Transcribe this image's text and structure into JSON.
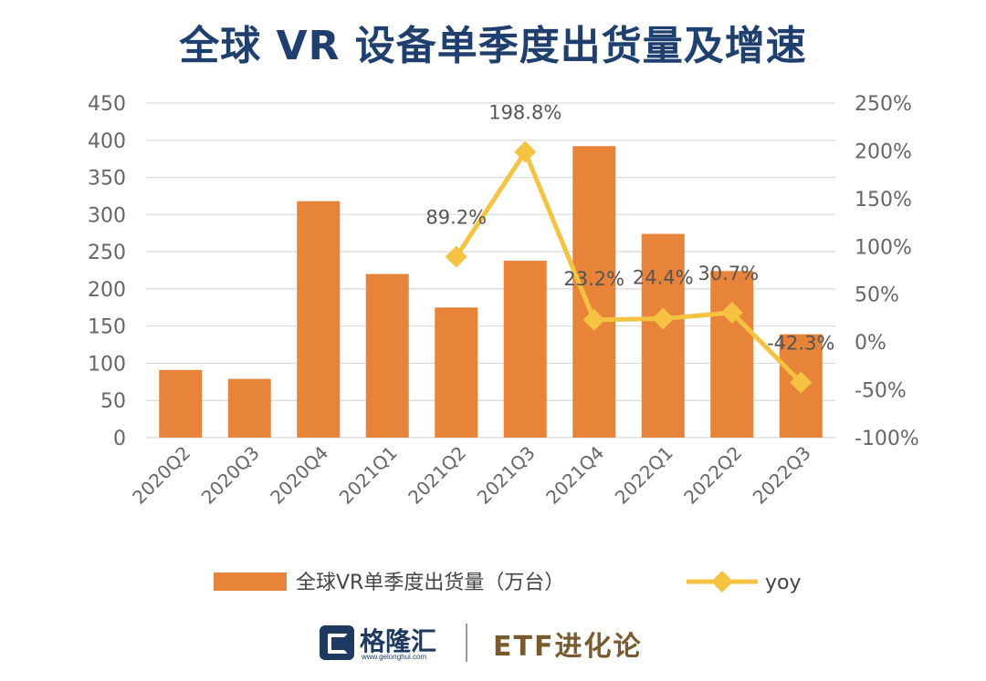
{
  "title": "全球 VR 设备单季度出货量及增速",
  "chart_data": {
    "type": "bar",
    "title": "全球 VR 设备单季度出货量及增速",
    "categories": [
      "2020Q2",
      "2020Q3",
      "2020Q4",
      "2021Q1",
      "2021Q2",
      "2021Q3",
      "2021Q4",
      "2022Q1",
      "2022Q2",
      "2022Q3"
    ],
    "series": [
      {
        "name": "全球VR单季度出货量（万台）",
        "type": "bar",
        "axis": "left",
        "color": "#e8843a",
        "values": [
          91,
          79,
          318,
          220,
          175,
          238,
          392,
          274,
          224,
          139
        ]
      },
      {
        "name": "yoy",
        "type": "line",
        "axis": "right",
        "color": "#f5c341",
        "marker": "diamond",
        "values": [
          null,
          null,
          null,
          null,
          89.2,
          198.8,
          23.2,
          24.4,
          30.7,
          -42.3
        ],
        "labels": [
          "",
          "",
          "",
          "",
          "89.2%",
          "198.8%",
          "23.2%",
          "24.4%",
          "30.7%",
          "-42.3%"
        ]
      }
    ],
    "y_left": {
      "min": 0,
      "max": 450,
      "ticks": [
        0,
        50,
        100,
        150,
        200,
        250,
        300,
        350,
        400,
        450
      ],
      "tick_labels": [
        "0",
        "50",
        "100",
        "150",
        "200",
        "250",
        "300",
        "350",
        "400",
        "450"
      ]
    },
    "y_right": {
      "min": -100,
      "max": 250,
      "ticks": [
        -100,
        -50,
        0,
        50,
        100,
        150,
        200,
        250
      ],
      "tick_labels": [
        "-100%",
        "-50%",
        "0%",
        "50%",
        "100%",
        "150%",
        "200%",
        "250%"
      ]
    },
    "grid": true,
    "legend_position": "bottom"
  },
  "footer": {
    "brand": "格隆汇",
    "url": "www.gelonghui.com",
    "tagline": "ETF进化论"
  }
}
